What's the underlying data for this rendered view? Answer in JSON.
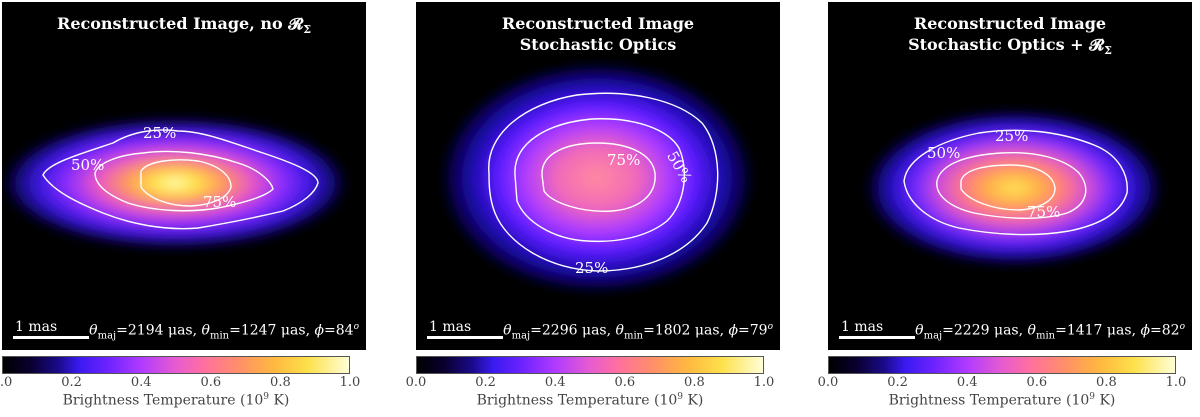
{
  "panels": [
    {
      "title_line1": "Reconstructed Image, no 𝓡",
      "title_sub": "Σ",
      "title_line2": "",
      "scale_label": "1 mas",
      "theta_maj": "2194",
      "theta_min": "1247",
      "phi": "84",
      "contours": [
        "25%",
        "50%",
        "75%"
      ]
    },
    {
      "title_line1": "Reconstructed Image",
      "title_sub": "",
      "title_line2": "Stochastic Optics",
      "scale_label": "1 mas",
      "theta_maj": "2296",
      "theta_min": "1802",
      "phi": "79",
      "contours": [
        "25%",
        "50%",
        "75%"
      ]
    },
    {
      "title_line1": "Reconstructed Image",
      "title_sub": "",
      "title_line2": "Stochastic Optics + 𝓡",
      "title_sub2": "Σ",
      "scale_label": "1 mas",
      "theta_maj": "2229",
      "theta_min": "1417",
      "phi": "82",
      "contours": [
        "25%",
        "50%",
        "75%"
      ]
    }
  ],
  "colorbar": {
    "ticks": [
      "0.0",
      "0.2",
      "0.4",
      "0.6",
      "0.8",
      "1.0"
    ],
    "label_main": "Brightness Temperature (10",
    "label_exp": "9",
    "label_end": " K)"
  },
  "units": {
    "theta_unit": "μas",
    "phi_unit": "o"
  }
}
